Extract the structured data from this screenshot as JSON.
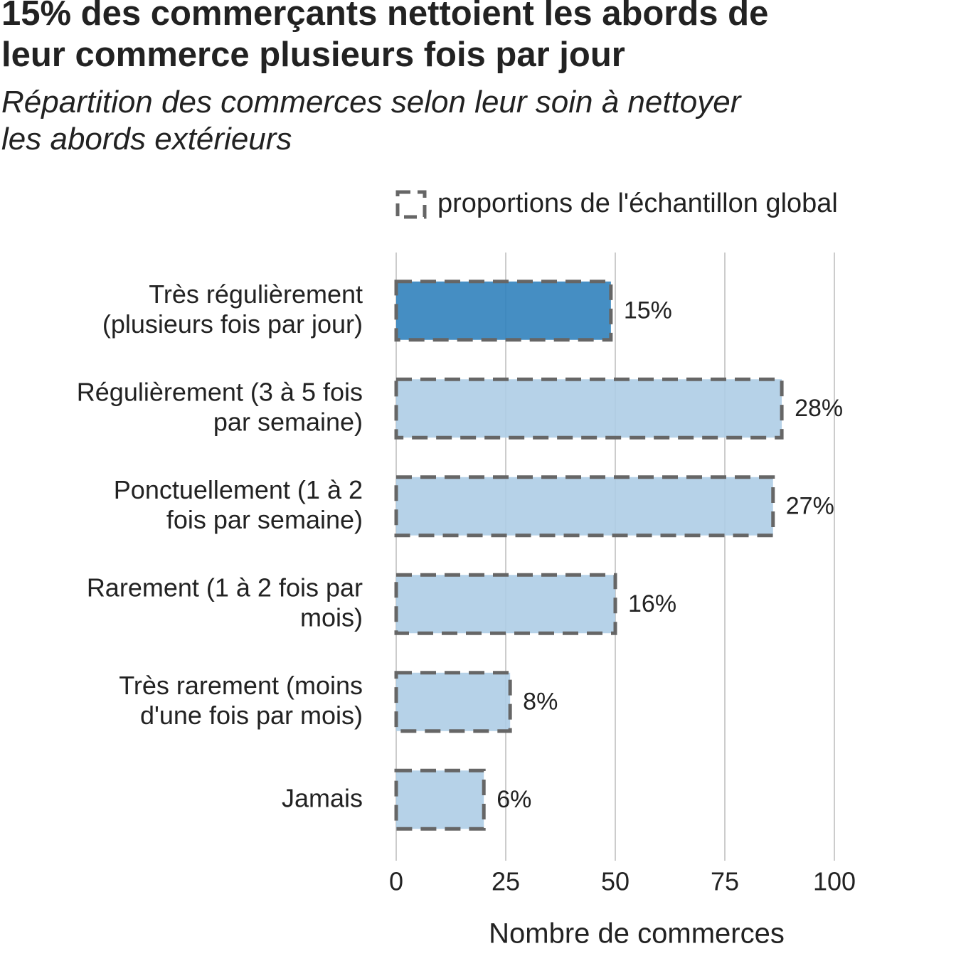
{
  "chart_data": {
    "type": "bar",
    "title": "15% des commerçants nettoient les abords de\nleur commerce plusieurs fois par jour",
    "subtitle": "Répartition des commerces selon leur soin à nettoyer\nles abords extérieurs",
    "x_label": "Nombre de commerces",
    "categories": [
      "Très régulièrement\n(plusieurs fois par jour)",
      "Régulièrement (3 à 5 fois\npar semaine)",
      "Ponctuellement (1 à 2\nfois par semaine)",
      "Rarement (1 à 2 fois par\nmois)",
      "Très rarement (moins\nd'une fois par mois)",
      "Jamais"
    ],
    "series": [
      {
        "name": null,
        "colors": [
          "#3182bd",
          "#aecde6",
          "#aecde6",
          "#aecde6",
          "#aecde6",
          "#aecde6"
        ],
        "values": [
          49,
          88,
          86,
          50,
          26,
          20
        ],
        "value_labels": [
          "15%",
          "28%",
          "27%",
          "16%",
          "8%",
          "6%"
        ]
      },
      {
        "name": "proportions de l'échantillon global",
        "color": "#666666",
        "style": "dashed",
        "values": [
          49,
          88,
          86,
          50,
          26,
          20
        ]
      }
    ],
    "xlim": [
      0,
      100
    ],
    "xticks": [
      0,
      25,
      50,
      75,
      100
    ],
    "grid": true
  }
}
